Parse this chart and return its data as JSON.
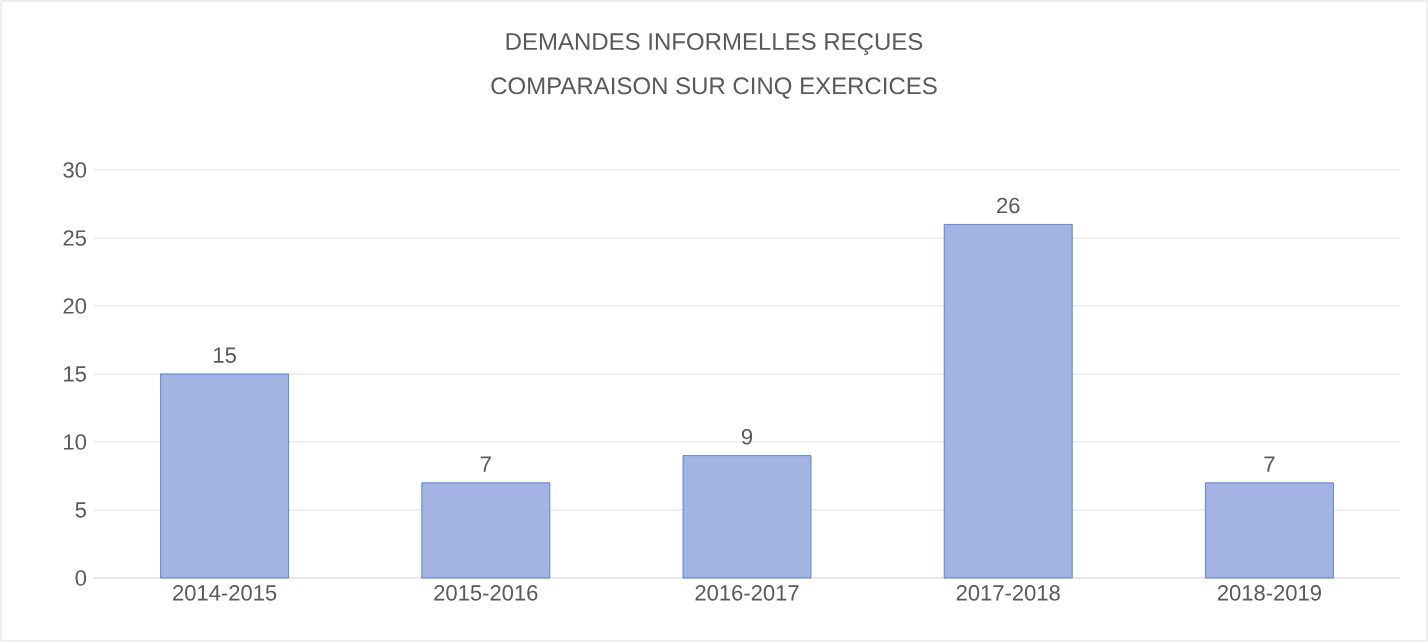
{
  "chart_data": {
    "type": "bar",
    "title": "DEMANDES INFORMELLES REÇUES",
    "subtitle": "COMPARAISON SUR CINQ EXERCICES",
    "categories": [
      "2014-2015",
      "2015-2016",
      "2016-2017",
      "2017-2018",
      "2018-2019"
    ],
    "values": [
      15,
      7,
      9,
      26,
      7
    ],
    "color": "#a3b3e3",
    "ylim": [
      0,
      30
    ],
    "yticks": [
      0,
      5,
      10,
      15,
      20,
      25,
      30
    ],
    "grid": "y",
    "data_labels": true
  }
}
